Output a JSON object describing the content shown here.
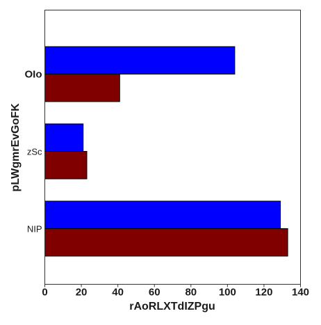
{
  "chart_data": {
    "type": "bar",
    "orientation": "horizontal",
    "categories": [
      "NIP",
      "zSc",
      "OIo"
    ],
    "series": [
      {
        "values": [
          129,
          21,
          104
        ]
      },
      {
        "values": [
          133,
          23,
          41
        ]
      }
    ],
    "xlabel": "rAoRLXTdIZPgu",
    "ylabel": "pLWgmrEvGoFK",
    "xlim": [
      0,
      140
    ],
    "xticks": [
      "0",
      "20",
      "40",
      "60",
      "80",
      "100",
      "120",
      "140"
    ],
    "grid": false,
    "legend": "none"
  },
  "colors": {
    "series": [
      "#0000ff",
      "#800000"
    ],
    "frame": "#333333"
  }
}
